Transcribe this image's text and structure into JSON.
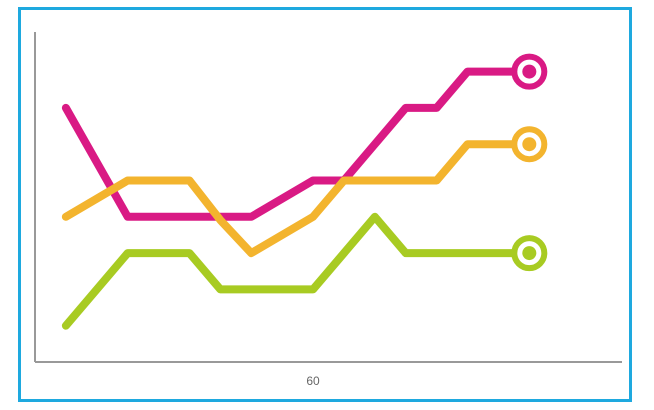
{
  "chart_data": {
    "type": "line",
    "title": "",
    "xlabel": "",
    "ylabel": "",
    "x_tick_labels": [
      {
        "value": 60,
        "label": "60"
      }
    ],
    "x": [
      20,
      30,
      40,
      45,
      50,
      60,
      65,
      70,
      75,
      80,
      85,
      90,
      95
    ],
    "xlim": [
      15,
      110
    ],
    "ylim": [
      0,
      10
    ],
    "grid": false,
    "legend": "none",
    "colors": {
      "frame": "#1ea9df",
      "axis": "#999999",
      "series_1": "#d91a84",
      "series_2": "#f3b42e",
      "series_3": "#a8cb22"
    },
    "series": [
      {
        "values": [
          7.7,
          4.4,
          4.4,
          4.4,
          4.4,
          5.5,
          5.5,
          6.6,
          7.7,
          7.7,
          8.8,
          8.8,
          8.8
        ]
      },
      {
        "values": [
          4.4,
          5.5,
          5.5,
          4.3,
          3.3,
          4.4,
          5.5,
          5.5,
          5.5,
          5.5,
          6.6,
          6.6,
          6.6
        ]
      },
      {
        "values": [
          1.1,
          3.3,
          3.3,
          2.2,
          2.2,
          2.2,
          3.3,
          4.4,
          3.3,
          3.3,
          3.3,
          3.3,
          3.3
        ]
      }
    ]
  }
}
